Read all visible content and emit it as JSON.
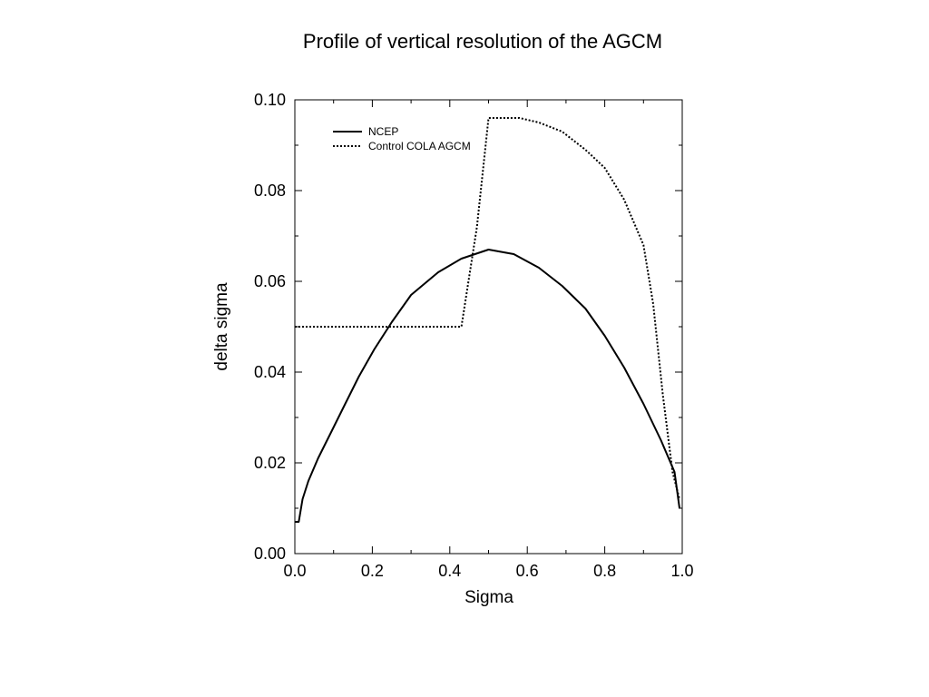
{
  "chart_data": {
    "type": "line",
    "title": "Profile of vertical resolution of the AGCM",
    "xlabel": "Sigma",
    "ylabel": "delta sigma",
    "xlim": [
      0.0,
      1.0
    ],
    "ylim": [
      0.0,
      0.1
    ],
    "x_ticks": [
      "0.0",
      "0.2",
      "0.4",
      "0.6",
      "0.8",
      "1.0"
    ],
    "y_ticks": [
      "0.00",
      "0.02",
      "0.04",
      "0.06",
      "0.08",
      "0.10"
    ],
    "grid": false,
    "legend_position": "top-left",
    "series": [
      {
        "name": "NCEP",
        "style": "solid",
        "color": "#000000",
        "x": [
          0.0,
          0.01,
          0.02,
          0.035,
          0.06,
          0.095,
          0.13,
          0.165,
          0.205,
          0.25,
          0.3,
          0.37,
          0.43,
          0.5,
          0.565,
          0.63,
          0.69,
          0.75,
          0.8,
          0.85,
          0.9,
          0.945,
          0.98,
          0.993
        ],
        "y": [
          0.007,
          0.007,
          0.012,
          0.016,
          0.021,
          0.027,
          0.033,
          0.039,
          0.045,
          0.051,
          0.057,
          0.062,
          0.065,
          0.067,
          0.066,
          0.063,
          0.059,
          0.054,
          0.048,
          0.041,
          0.033,
          0.025,
          0.018,
          0.01
        ]
      },
      {
        "name": "Control COLA AGCM",
        "style": "dotted",
        "color": "#000000",
        "x": [
          0.0,
          0.21,
          0.43,
          0.47,
          0.5,
          0.58,
          0.63,
          0.69,
          0.75,
          0.8,
          0.85,
          0.9,
          0.925,
          0.95,
          0.975,
          0.993
        ],
        "y": [
          0.05,
          0.05,
          0.05,
          0.072,
          0.096,
          0.096,
          0.095,
          0.093,
          0.089,
          0.085,
          0.078,
          0.068,
          0.055,
          0.035,
          0.018,
          0.012
        ]
      }
    ]
  }
}
